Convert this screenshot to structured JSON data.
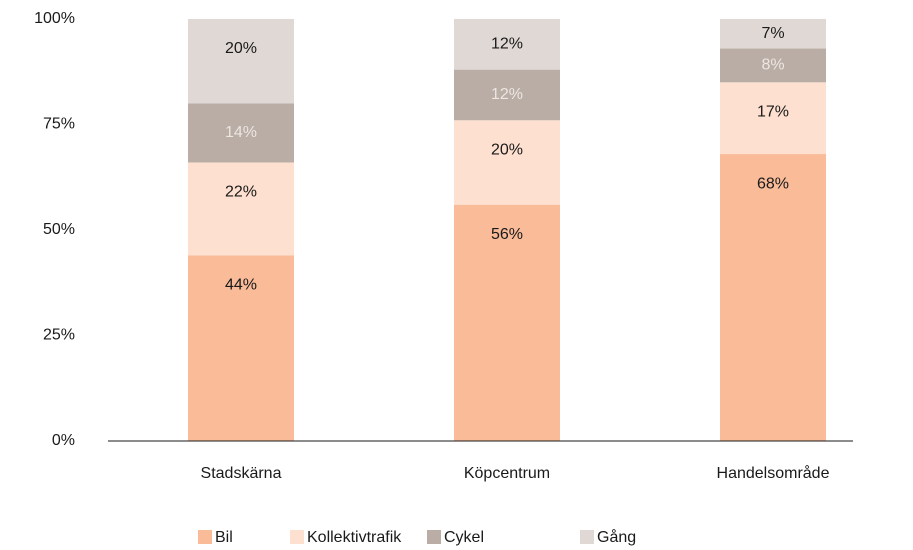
{
  "chart_data": {
    "type": "stacked_bar",
    "categories": [
      "Stadskärna",
      "Köpcentrum",
      "Handelsområde"
    ],
    "series": [
      {
        "name": "Bil",
        "color": "#f9bb98",
        "label_color": "#1a1a1a",
        "values": [
          44,
          56,
          68
        ],
        "value_labels": [
          "44%",
          "56%",
          "68%"
        ]
      },
      {
        "name": "Kollektivtrafik",
        "color": "#fde0d0",
        "label_color": "#1a1a1a",
        "values": [
          22,
          20,
          17
        ],
        "value_labels": [
          "22%",
          "20%",
          "17%"
        ]
      },
      {
        "name": "Cykel",
        "color": "#b9ada5",
        "label_color": "#ede6e2",
        "values": [
          14,
          12,
          8
        ],
        "value_labels": [
          "14%",
          "12%",
          "8%"
        ]
      },
      {
        "name": "Gång",
        "color": "#e0d8d4",
        "label_color": "#1a1a1a",
        "values": [
          20,
          12,
          7
        ],
        "value_labels": [
          "20%",
          "12%",
          "7%"
        ]
      }
    ],
    "ylim": [
      0,
      100
    ],
    "yticks": [
      {
        "value": 0,
        "label": "0%"
      },
      {
        "value": 25,
        "label": "25%"
      },
      {
        "value": 50,
        "label": "50%"
      },
      {
        "value": 75,
        "label": "75%"
      },
      {
        "value": 100,
        "label": "100%"
      }
    ],
    "legend": "bottom"
  }
}
